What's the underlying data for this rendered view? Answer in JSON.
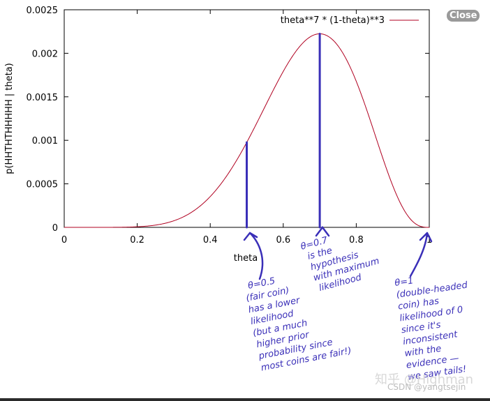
{
  "close_label": "Close",
  "watermark_text": "知乎 @Highman",
  "csdn_text": "CSDN @yangtsejin",
  "colors": {
    "curve": "#b00020",
    "bars": "#3a2fb8",
    "ink": "#3a2fb8"
  },
  "chart_data": {
    "type": "line",
    "xlabel": "theta",
    "ylabel": "p(HHTHTHHHHH | theta)",
    "xlim": [
      0,
      1
    ],
    "ylim": [
      0,
      0.0025
    ],
    "x_ticks": [
      "0",
      "0.2",
      "0.4",
      "0.6",
      "0.8",
      "1"
    ],
    "y_ticks": [
      "0",
      "0.0005",
      "0.001",
      "0.0015",
      "0.002",
      "0.0025"
    ],
    "grid": false,
    "legend": "top-right",
    "series": [
      {
        "name": "theta**7 * (1-theta)**3",
        "function": "theta^7 * (1-theta)^3",
        "samples": 400
      }
    ],
    "vertical_markers": [
      {
        "x": 0.5,
        "y": 0.000977
      },
      {
        "x": 0.7,
        "y": 0.002224
      }
    ]
  },
  "annotations": [
    {
      "key": "half",
      "lines": [
        "θ=0.5",
        "(fair coin)",
        "has a lower",
        "likelihood",
        "(but a much",
        "higher prior",
        "probability since",
        "most coins are fair!)"
      ]
    },
    {
      "key": "seven",
      "lines": [
        "θ=0.7",
        "is the",
        "hypothesis",
        "with maximum",
        "likelihood"
      ]
    },
    {
      "key": "one",
      "lines": [
        "θ=1",
        "(double-headed",
        "coin) has",
        "likelihood of 0",
        "since it's",
        "inconsistent",
        "with the",
        "evidence —",
        "we saw tails!"
      ]
    }
  ]
}
